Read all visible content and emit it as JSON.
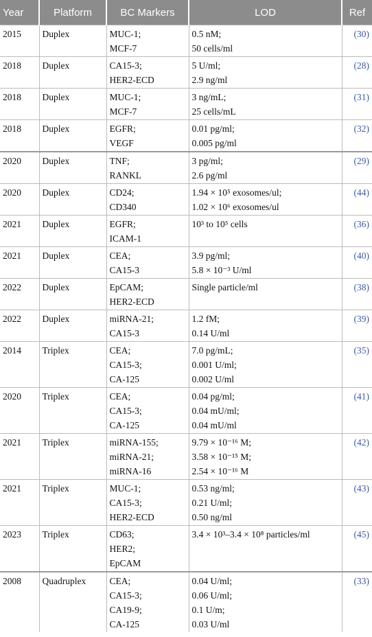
{
  "table": {
    "header": [
      "Year",
      "Platform",
      "BC Markers",
      "LOD",
      "Ref"
    ],
    "rows": [
      [
        "2015",
        "Duplex",
        [
          "MUC-1;",
          "MCF-7"
        ],
        [
          "0.5 nM;",
          "50 cells/ml"
        ],
        "(30)"
      ],
      [
        "2018",
        "Duplex",
        [
          "CA15-3;",
          "HER2-ECD"
        ],
        [
          "5 U/ml;",
          "2.9 ng/ml"
        ],
        "(28)"
      ],
      [
        "2018",
        "Duplex",
        [
          "MUC-1;",
          "MCF-7"
        ],
        [
          "3 ng/mL;",
          "25 cells/mL"
        ],
        "(31)"
      ],
      [
        "2018",
        "Duplex",
        [
          "EGFR;",
          "VEGF"
        ],
        [
          "0.01 pg/ml;",
          "0.005 pg/ml"
        ],
        "(32)"
      ],
      [
        "2020",
        "Duplex",
        [
          "TNF;",
          "RANKL"
        ],
        [
          "3 pg/ml;",
          "2.6 pg/ml"
        ],
        "(29)"
      ],
      [
        "2020",
        "Duplex",
        [
          "CD24;",
          "CD340"
        ],
        [
          "1.94 × 10⁵ exosomes/ul;",
          "1.02 × 10⁶ exosomes/ul"
        ],
        "(44)"
      ],
      [
        "2021",
        "Duplex",
        [
          "EGFR;",
          "ICAM-1"
        ],
        [
          "10³ to 10⁵ cells"
        ],
        "(36)"
      ],
      [
        "2021",
        "Duplex",
        [
          "CEA;",
          "CA15-3"
        ],
        [
          "3.9 pg/ml;",
          "5.8 × 10⁻³ U/ml"
        ],
        "(40)"
      ],
      [
        "2022",
        "Duplex",
        [
          "EpCAM;",
          "HER2-ECD"
        ],
        [
          "Single particle/ml"
        ],
        "(38)"
      ],
      [
        "2022",
        "Duplex",
        [
          "miRNA-21;",
          "CA15-3"
        ],
        [
          "1.2 fM;",
          "0.14 U/ml"
        ],
        "(39)"
      ],
      [
        "2014",
        "Triplex",
        [
          "CEA;",
          "CA15-3;",
          "CA-125"
        ],
        [
          "7.0 pg/mL;",
          "0.001 U/ml;",
          "0.002 U/ml"
        ],
        "(35)"
      ],
      [
        "2020",
        "Triplex",
        [
          "CEA;",
          "CA15-3;",
          "CA-125"
        ],
        [
          "0.04 pg/ml;",
          "0.04 mU/ml;",
          "0.04 mU/ml"
        ],
        "(41)"
      ],
      [
        "2021",
        "Triplex",
        [
          "miRNA-155;",
          "miRNA-21;",
          "miRNA-16"
        ],
        [
          "9.79 × 10⁻¹⁶ M;",
          "3.58 × 10⁻¹⁵ M;",
          "2.54 × 10⁻¹⁶ M"
        ],
        "(42)"
      ],
      [
        "2021",
        "Triplex",
        [
          "MUC-1;",
          "CA15-3;",
          "HER2-ECD"
        ],
        [
          "0.53 ng/ml;",
          "0.21 U/ml;",
          "0.50 ng/ml"
        ],
        "(43)"
      ],
      [
        "2023",
        "Triplex",
        [
          "CD63;",
          "HER2;",
          "EpCAM"
        ],
        [
          "3.4 × 10³–3.4 × 10⁸ particles/ml"
        ],
        "(45)"
      ],
      [
        "2008",
        "Quadruplex",
        [
          "CEA;",
          "CA15-3;",
          "CA19-9;",
          "CA-125"
        ],
        [
          "0.04 U/ml;",
          "0.06 U/ml;",
          "0.1 U/m;",
          "0.03 U/ml"
        ],
        "(33)"
      ]
    ]
  }
}
